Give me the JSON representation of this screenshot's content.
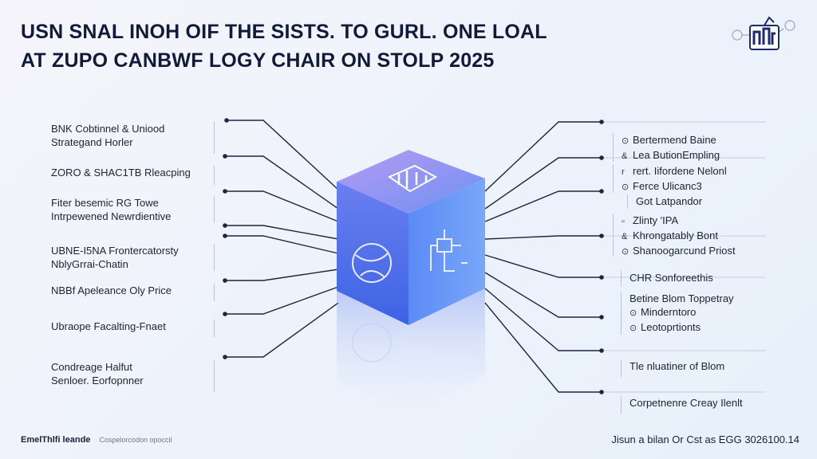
{
  "title": {
    "line1": "USN SNAL INOH OIF THE SISTS. TO GURL. ONE LOAL",
    "line2": "AT ZUPO CANBWF LOGY CHAIR ON STOLP 2025"
  },
  "left_items": [
    {
      "lines": [
        "BNK Cobtinnel & Uniood",
        "Strategand Horler"
      ]
    },
    {
      "lines": [
        "ZORO & SHAC1TB Rleacping"
      ]
    },
    {
      "lines": [
        "Fiter besemic RG Towe",
        "Intrpewened Newrdientive"
      ]
    },
    {
      "lines": [
        "UBNE-I5NA Frontercatorsty",
        "NblyGrrai-Chatin"
      ]
    },
    {
      "lines": [
        "NBBf Apeleance Oly Price"
      ]
    },
    {
      "lines": [
        "Ubraope Facalting-Fnaet"
      ]
    },
    {
      "lines": [
        "Condreage Halfut",
        "Senloer. Eorfopnner"
      ]
    }
  ],
  "right_items": [
    {
      "lines": [
        {
          "bullet": "⊙",
          "text": "Bertermend Baine"
        },
        {
          "bullet": "&",
          "text": "Lea ButionEmpling"
        }
      ]
    },
    {
      "lines": [
        {
          "bullet": "r",
          "text": "rert. Iifordene Nelonl"
        },
        {
          "bullet": "⊙",
          "text": "Ferce Ulicanc3"
        }
      ]
    },
    {
      "lines": [
        {
          "bullet": "",
          "text": "Got Latpandor"
        }
      ]
    },
    {
      "lines": [
        {
          "bullet": "▫",
          "text": "Zlinty 'IPA"
        },
        {
          "bullet": "&",
          "text": "Khrongatably Bont"
        },
        {
          "bullet": "⊙",
          "text": "Shanoogarcund Priost"
        }
      ]
    },
    {
      "lines": [
        {
          "bullet": "",
          "text": "CHR Sonforeethis"
        }
      ]
    },
    {
      "lines": [
        {
          "bullet": "",
          "text": "Betine Blom Toppetray"
        },
        {
          "bullet": "⊙",
          "text": "Minderntoro"
        },
        {
          "bullet": "⊙",
          "text": "Leotoprtionts"
        }
      ]
    },
    {
      "lines": [
        {
          "bullet": "",
          "text": "Tle nluatiner of Blom"
        }
      ]
    },
    {
      "lines": [
        {
          "bullet": "",
          "text": "Corpetnenre Creay Ilenlt"
        }
      ]
    }
  ],
  "footer": {
    "brand": "EmelThlfi leande",
    "sub": "Cospelorcodon opoccil",
    "right": "Jisun a bilan Or Cst as EGG 3026100.14"
  },
  "colors": {
    "cube_front": "#4f6de6",
    "cube_top": "#8f8ef0",
    "cube_side": "#5f8ef5",
    "line": "#1f2440"
  }
}
